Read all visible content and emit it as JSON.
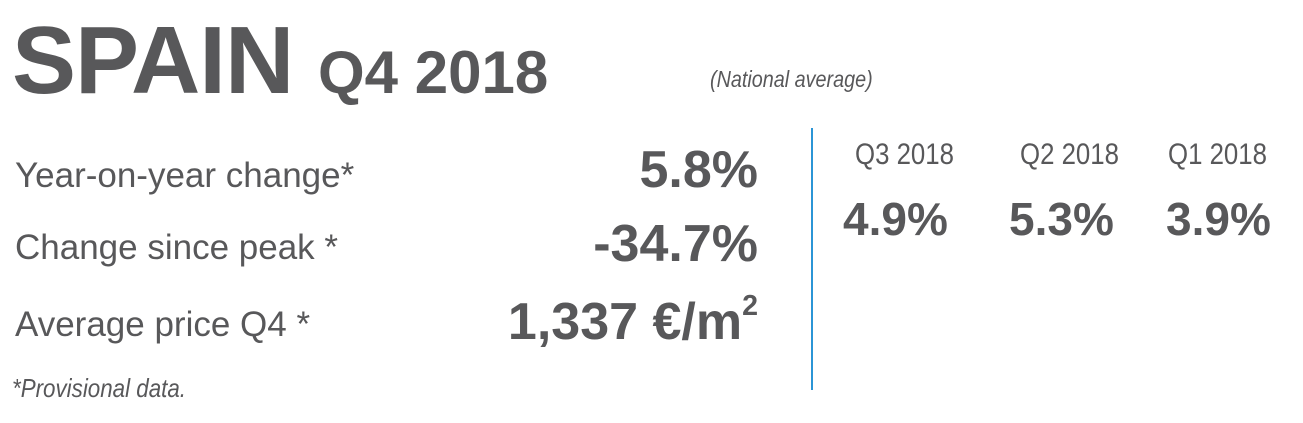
{
  "header": {
    "country": "SPAIN",
    "period": "Q4 2018",
    "scope": "(National average)"
  },
  "metrics": [
    {
      "label": "Year-on-year change*",
      "value": "5.8%"
    },
    {
      "label": "Change since peak *",
      "value": "-34.7%"
    },
    {
      "label": "Average price Q4 *",
      "value": "1,337 €/m",
      "unit_sup": "2"
    }
  ],
  "previous_quarters": [
    {
      "label": "Q3 2018",
      "value": "4.9%"
    },
    {
      "label": "Q2 2018",
      "value": "5.3%"
    },
    {
      "label": "Q1 2018",
      "value": "3.9%"
    }
  ],
  "footnote": "*Provisional data.",
  "colors": {
    "text": "#58585a",
    "divider": "#2b95d6"
  }
}
